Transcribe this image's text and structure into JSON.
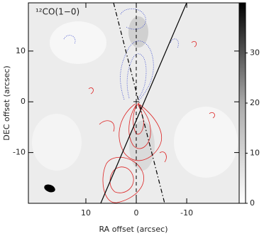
{
  "chart_data": {
    "type": "image",
    "label": "¹²CO(1−0)",
    "x_label": "RA offset (arcsec)",
    "y_label": "DEC offset (arcsec)",
    "xlim": [
      21.4,
      -20.4
    ],
    "xticks": [
      10,
      0,
      -10
    ],
    "ylim": [
      -20,
      19.5
    ],
    "yticks": [
      -10,
      0,
      10
    ],
    "clim": [
      0,
      40
    ],
    "cticks": [
      0,
      10,
      20,
      30
    ]
  }
}
